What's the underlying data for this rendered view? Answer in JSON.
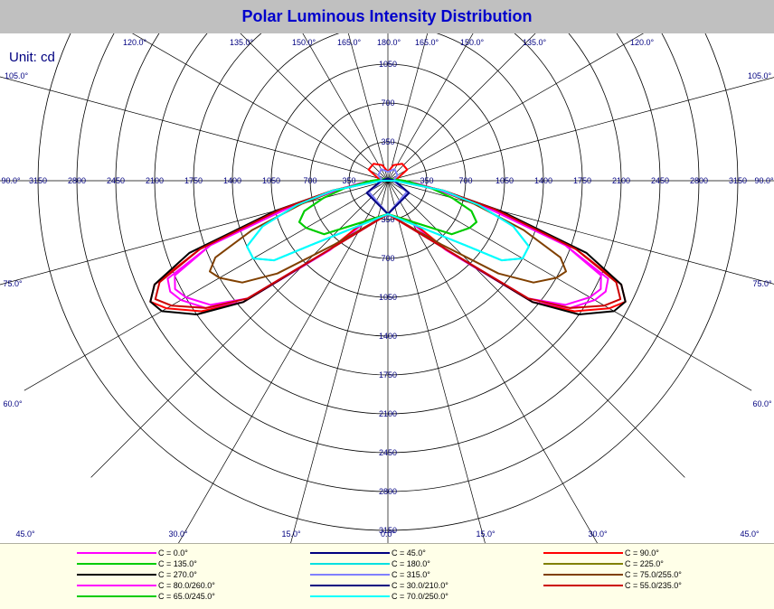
{
  "title": "Polar Luminous Intensity Distribution",
  "unit_label": "Unit: cd",
  "colors": {
    "title": "#0000cc",
    "grid": "#000000",
    "tick_text": "#000080"
  },
  "chart_data": {
    "type": "polar",
    "title": "Polar Luminous Intensity Distribution",
    "unit": "cd",
    "radial_ticks": [
      350,
      700,
      1050,
      1400,
      1750,
      2100,
      2450,
      2800,
      3150
    ],
    "radial_max": 3150,
    "angle_labels_left": [
      "120.0°",
      "135.0°",
      "150.0°",
      "165.0°",
      "180.0°",
      "165.0°",
      "150.0°",
      "135.0°",
      "120.0°",
      "105.0°",
      "90.0°",
      "75.0°",
      "60.0°",
      "45.0°",
      "30.0°",
      "15.0°",
      "0.0°",
      "15.0°",
      "30.0°",
      "45.0°",
      "60.0°",
      "75.0°",
      "90.0°",
      "105.0°"
    ],
    "series": [
      {
        "name": "C = 0.0°",
        "color": "#ff00ff",
        "points": [
          [
            0,
            300
          ],
          [
            30,
            450
          ],
          [
            40,
            820
          ],
          [
            50,
            1700
          ],
          [
            55,
            2000
          ],
          [
            60,
            2150
          ],
          [
            63,
            2200
          ],
          [
            66,
            2170
          ],
          [
            70,
            1700
          ],
          [
            75,
            900
          ],
          [
            80,
            450
          ],
          [
            85,
            250
          ],
          [
            90,
            80
          ]
        ]
      },
      {
        "name": "C = 45.0°",
        "color": "#000080",
        "points": [
          [
            0,
            300
          ],
          [
            60,
            200
          ],
          [
            90,
            50
          ],
          [
            120,
            25
          ],
          [
            150,
            20
          ],
          [
            180,
            18
          ]
        ]
      },
      {
        "name": "C = 90.0°",
        "color": "#ff0000",
        "points": [
          [
            0,
            300
          ],
          [
            30,
            420
          ],
          [
            40,
            800
          ],
          [
            50,
            1700
          ],
          [
            55,
            2050
          ],
          [
            60,
            2300
          ],
          [
            63,
            2400
          ],
          [
            66,
            2300
          ],
          [
            70,
            1800
          ],
          [
            75,
            1000
          ],
          [
            80,
            500
          ],
          [
            90,
            100
          ],
          [
            100,
            80
          ],
          [
            120,
            200
          ],
          [
            140,
            200
          ],
          [
            160,
            150
          ],
          [
            180,
            80
          ]
        ]
      },
      {
        "name": "C = 135.0°",
        "color": "#00cc00",
        "points": [
          [
            0,
            300
          ],
          [
            50,
            750
          ],
          [
            60,
            850
          ],
          [
            65,
            880
          ],
          [
            70,
            800
          ],
          [
            75,
            600
          ],
          [
            80,
            400
          ],
          [
            90,
            150
          ],
          [
            180,
            20
          ]
        ]
      },
      {
        "name": "C = 180.0°",
        "color": "#00e0e0",
        "points": [
          [
            0,
            300
          ],
          [
            50,
            900
          ],
          [
            55,
            1250
          ],
          [
            60,
            1400
          ],
          [
            65,
            1400
          ],
          [
            70,
            1200
          ],
          [
            75,
            850
          ],
          [
            80,
            500
          ],
          [
            90,
            60
          ],
          [
            180,
            0
          ]
        ]
      },
      {
        "name": "C = 225.0°",
        "color": "#808000",
        "points": [
          [
            0,
            300
          ],
          [
            60,
            200
          ],
          [
            90,
            50
          ],
          [
            180,
            20
          ]
        ]
      },
      {
        "name": "C = 270.0°",
        "color": "#000000",
        "points": [
          [
            0,
            300
          ],
          [
            40,
            800
          ],
          [
            50,
            1700
          ],
          [
            55,
            2100
          ],
          [
            60,
            2350
          ],
          [
            63,
            2400
          ],
          [
            66,
            2300
          ],
          [
            70,
            1900
          ],
          [
            75,
            1050
          ],
          [
            80,
            500
          ],
          [
            90,
            80
          ]
        ]
      },
      {
        "name": "C = 315.0°",
        "color": "#8080ff",
        "points": [
          [
            0,
            300
          ],
          [
            60,
            200
          ],
          [
            90,
            50
          ],
          [
            120,
            100
          ],
          [
            150,
            120
          ],
          [
            180,
            80
          ]
        ]
      },
      {
        "name": "C = 75.0/255.0°",
        "color": "#804000",
        "points": [
          [
            0,
            300
          ],
          [
            40,
            750
          ],
          [
            50,
            1300
          ],
          [
            55,
            1600
          ],
          [
            60,
            1750
          ],
          [
            63,
            1800
          ],
          [
            66,
            1700
          ],
          [
            70,
            1300
          ],
          [
            75,
            800
          ],
          [
            80,
            450
          ],
          [
            90,
            80
          ]
        ]
      },
      {
        "name": "C = 80.0/260.0°",
        "color": "#ff00ff",
        "points": [
          [
            0,
            300
          ],
          [
            40,
            800
          ],
          [
            50,
            1650
          ],
          [
            55,
            1950
          ],
          [
            60,
            2100
          ],
          [
            63,
            2150
          ],
          [
            66,
            2100
          ],
          [
            70,
            1700
          ],
          [
            75,
            950
          ],
          [
            80,
            450
          ],
          [
            90,
            80
          ]
        ]
      },
      {
        "name": "C = 30.0/210.0°",
        "color": "#000080",
        "points": [
          [
            0,
            300
          ],
          [
            60,
            220
          ],
          [
            90,
            60
          ],
          [
            180,
            20
          ]
        ]
      },
      {
        "name": "C = 55.0/235.0°",
        "color": "#cc0000",
        "points": [
          [
            0,
            300
          ],
          [
            40,
            800
          ],
          [
            50,
            1650
          ],
          [
            55,
            2000
          ],
          [
            60,
            2250
          ],
          [
            63,
            2350
          ],
          [
            66,
            2250
          ],
          [
            70,
            1800
          ],
          [
            75,
            1000
          ],
          [
            80,
            500
          ],
          [
            90,
            90
          ]
        ]
      },
      {
        "name": "C = 65.0/245.0°",
        "color": "#00cc00",
        "points": [
          [
            0,
            300
          ],
          [
            50,
            750
          ],
          [
            60,
            850
          ],
          [
            65,
            880
          ],
          [
            70,
            800
          ],
          [
            75,
            600
          ],
          [
            80,
            400
          ],
          [
            90,
            150
          ]
        ]
      },
      {
        "name": "C = 70.0/250.0°",
        "color": "#00ffff",
        "points": [
          [
            0,
            300
          ],
          [
            50,
            900
          ],
          [
            55,
            1250
          ],
          [
            60,
            1400
          ],
          [
            65,
            1400
          ],
          [
            70,
            1200
          ],
          [
            75,
            850
          ],
          [
            80,
            500
          ],
          [
            90,
            60
          ]
        ]
      }
    ]
  },
  "legend_layout_cols": 3
}
